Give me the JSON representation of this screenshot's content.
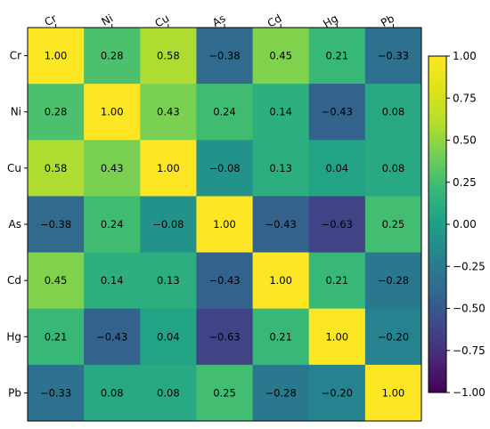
{
  "chart_data": {
    "type": "heatmap",
    "title": "",
    "xlabel": "",
    "ylabel": "",
    "x_categories": [
      "Cr",
      "Ni",
      "Cu",
      "As",
      "Cd",
      "Hg",
      "Pb"
    ],
    "y_categories": [
      "Cr",
      "Ni",
      "Cu",
      "As",
      "Cd",
      "Hg",
      "Pb"
    ],
    "x_ticks_position": "top",
    "x_tick_rotation_degrees": -30,
    "values": [
      [
        1.0,
        0.28,
        0.58,
        -0.38,
        0.45,
        0.21,
        -0.33
      ],
      [
        0.28,
        1.0,
        0.43,
        0.24,
        0.14,
        -0.43,
        0.08
      ],
      [
        0.58,
        0.43,
        1.0,
        -0.08,
        0.13,
        0.04,
        0.08
      ],
      [
        -0.38,
        0.24,
        -0.08,
        1.0,
        -0.43,
        -0.63,
        0.25
      ],
      [
        0.45,
        0.14,
        0.13,
        -0.43,
        1.0,
        0.21,
        -0.28
      ],
      [
        0.21,
        -0.43,
        0.04,
        -0.63,
        0.21,
        1.0,
        -0.2
      ],
      [
        -0.33,
        0.08,
        0.08,
        0.25,
        -0.28,
        -0.2,
        1.0
      ]
    ],
    "cell_labels": [
      [
        "1.00",
        "0.28",
        "0.58",
        "−0.38",
        "0.45",
        "0.21",
        "−0.33"
      ],
      [
        "0.28",
        "1.00",
        "0.43",
        "0.24",
        "0.14",
        "−0.43",
        "0.08"
      ],
      [
        "0.58",
        "0.43",
        "1.00",
        "−0.08",
        "0.13",
        "0.04",
        "0.08"
      ],
      [
        "−0.38",
        "0.24",
        "−0.08",
        "1.00",
        "−0.43",
        "−0.63",
        "0.25"
      ],
      [
        "0.45",
        "0.14",
        "0.13",
        "−0.43",
        "1.00",
        "0.21",
        "−0.28"
      ],
      [
        "0.21",
        "−0.43",
        "0.04",
        "−0.63",
        "0.21",
        "1.00",
        "−0.20"
      ],
      [
        "−0.33",
        "0.08",
        "0.08",
        "0.25",
        "−0.28",
        "−0.20",
        "1.00"
      ]
    ],
    "colormap": "viridis",
    "color_range": [
      -1.0,
      1.0
    ],
    "colorbar": {
      "ticks": [
        1.0,
        0.75,
        0.5,
        0.25,
        0.0,
        -0.25,
        -0.5,
        -0.75,
        -1.0
      ],
      "tick_labels": [
        "1.00",
        "0.75",
        "0.50",
        "0.25",
        "0.00",
        "−0.25",
        "−0.50",
        "−0.75",
        "−1.00"
      ]
    },
    "grid": false
  }
}
